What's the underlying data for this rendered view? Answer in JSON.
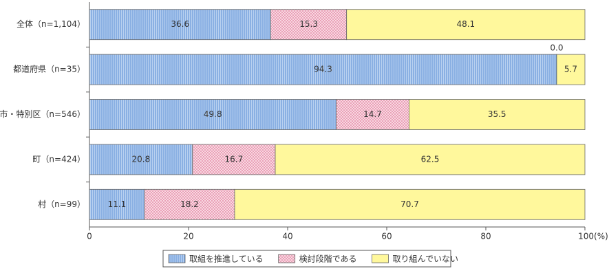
{
  "chart_data": {
    "type": "stacked-bar-horizontal",
    "categories": [
      "全体（n=1,104）",
      "都道府県（n=35）",
      "市・特別区（n=546）",
      "町（n=424）",
      "村（n=99）"
    ],
    "series": [
      {
        "name": "取組を推進している",
        "color": "#a9c5ea",
        "values": [
          36.6,
          94.3,
          49.8,
          20.8,
          11.1
        ]
      },
      {
        "name": "検討段階である",
        "color": "#f6cfdc",
        "values": [
          15.3,
          0.0,
          14.7,
          16.7,
          18.2
        ],
        "value_labels": [
          "15.3",
          "0.0",
          "14.7",
          "16.7",
          "18.2"
        ]
      },
      {
        "name": "取り組んでいない",
        "color": "#fff89c",
        "values": [
          48.1,
          5.7,
          35.5,
          62.5,
          70.7
        ]
      }
    ],
    "xlim": [
      0,
      100
    ],
    "xticks": [
      0,
      20,
      40,
      60,
      80,
      {
        "value": 100,
        "label": "100(%)"
      }
    ]
  }
}
